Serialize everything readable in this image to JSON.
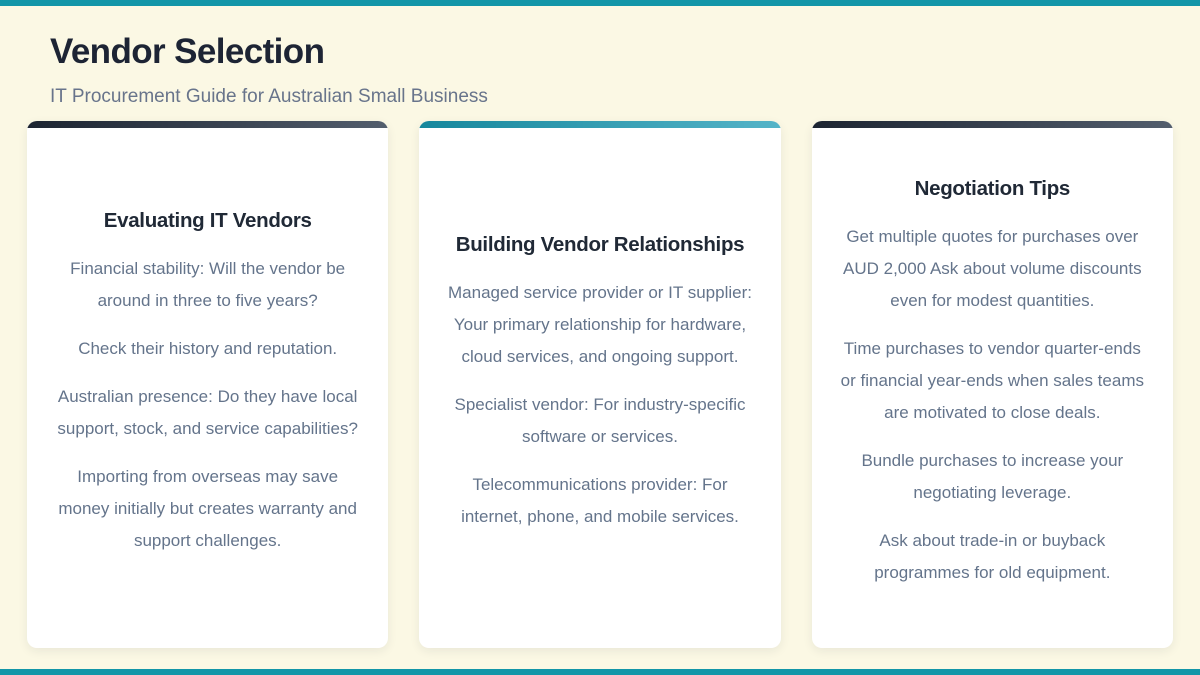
{
  "page": {
    "title": "Vendor Selection",
    "subtitle": "IT Procurement Guide for Australian Small Business"
  },
  "colors": {
    "accent_teal": "#1296a8",
    "teal_gradient_start": "#16879c",
    "teal_gradient_end": "#55b4c8",
    "dark_gradient_start": "#1c2431",
    "dark_gradient_end": "#535e6d",
    "background_cream": "#fbf8e4",
    "card_background": "#ffffff",
    "title_text": "#1d2434",
    "body_text": "#64748b"
  },
  "cards": [
    {
      "heading": "Evaluating IT Vendors",
      "paragraphs": [
        "Financial stability: Will the vendor be around in three to five years?",
        "Check their history and reputation.",
        "Australian presence: Do they have local support, stock, and service capabilities?",
        "Importing from overseas may save money initially but creates warranty and support challenges."
      ]
    },
    {
      "heading": "Building Vendor Relationships",
      "paragraphs": [
        "Managed service provider or IT supplier: Your primary relationship for hardware, cloud services, and ongoing support.",
        "Specialist vendor: For industry-specific software or services.",
        "Telecommunications provider: For internet, phone, and mobile services."
      ]
    },
    {
      "heading": "Negotiation Tips",
      "paragraphs": [
        "Get multiple quotes for purchases over AUD 2,000 Ask about volume discounts even for modest quantities.",
        "Time purchases to vendor quarter-ends or financial year-ends when sales teams are motivated to close deals.",
        "Bundle purchases to increase your negotiating leverage.",
        "Ask about trade-in or buyback programmes for old equipment."
      ]
    }
  ]
}
